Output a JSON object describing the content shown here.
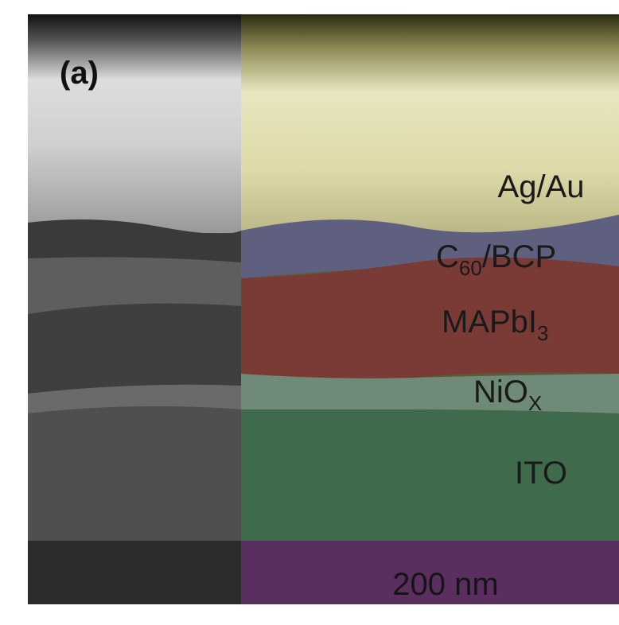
{
  "panel_label": "(a)",
  "layers": [
    {
      "base": "Ag/Au"
    },
    {
      "base": "C",
      "sub": "60",
      "tail": "/BCP"
    },
    {
      "base": "MAPbI",
      "sub": "3"
    },
    {
      "base": "NiO",
      "sub": "X"
    },
    {
      "base": "ITO"
    }
  ],
  "scale_bar": "200 nm"
}
